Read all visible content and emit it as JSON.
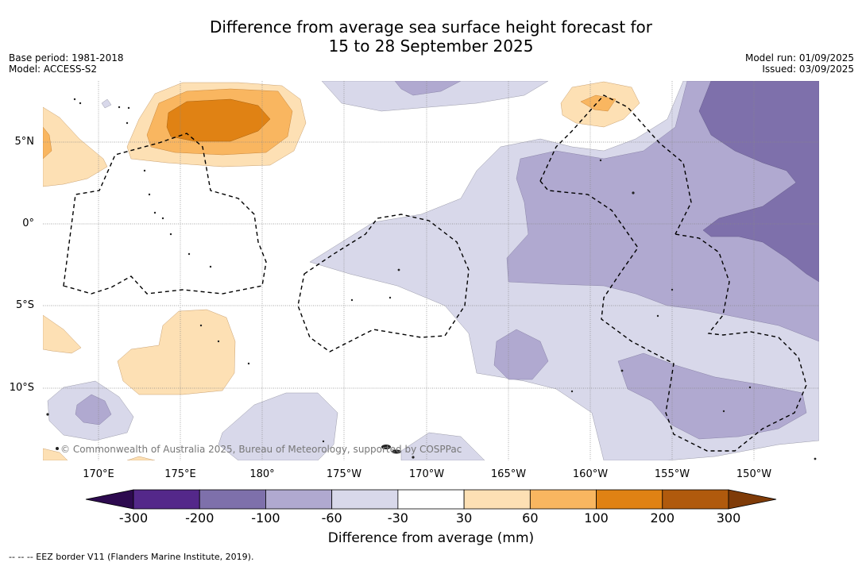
{
  "header": {
    "title_line1": "Difference from average sea surface height forecast for",
    "title_line2": "15 to 28 September 2025",
    "base_period": "Base period: 1981-2018",
    "model": "Model: ACCESS-S2",
    "model_run": "Model run: 01/09/2025",
    "issued": "Issued: 03/09/2025"
  },
  "map": {
    "lat_labels": [
      "5°N",
      "0°",
      "5°S",
      "10°S"
    ],
    "lon_labels": [
      "170°E",
      "175°E",
      "180°",
      "175°W",
      "170°W",
      "165°W",
      "160°W",
      "155°W",
      "150°W"
    ],
    "copyright": "© Commonwealth of Australia 2025, Bureau of Meteorology, supported by COSPPac"
  },
  "colorbar": {
    "ticks": [
      "-300",
      "-200",
      "-100",
      "-60",
      "-30",
      "30",
      "60",
      "100",
      "200",
      "300"
    ],
    "colors": [
      "#54288a",
      "#7e70ab",
      "#b0a9d0",
      "#d8d8ea",
      "#ffffff",
      "#fde0b4",
      "#f9b660",
      "#e08214",
      "#b05a0d"
    ],
    "under_color": "#2d0a4f",
    "over_color": "#7f3b08",
    "title": "Difference from average (mm)"
  },
  "footnote": "-- -- -- EEZ border V11 (Flanders Marine Institute, 2019)."
}
